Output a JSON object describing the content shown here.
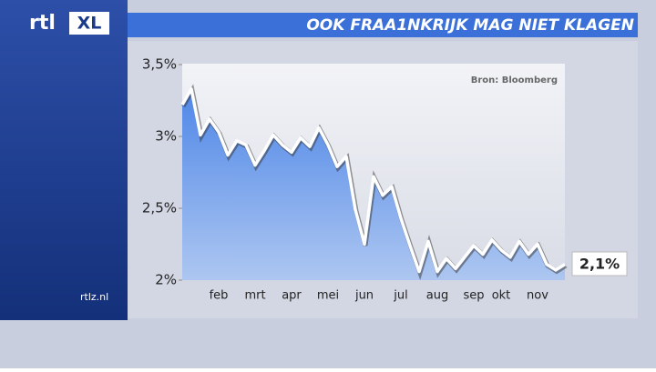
{
  "logo": {
    "rtl": "rtl",
    "xl": "XL"
  },
  "site": "rtlz.nl",
  "chart_data": {
    "type": "line",
    "title": "OOK FRAA1NKRIJK MAG NIET KLAGEN",
    "source": "Bron: Bloomberg",
    "annotation": "2,1%",
    "categories": [
      null,
      null,
      null,
      null,
      "feb",
      null,
      null,
      null,
      "mrt",
      null,
      null,
      null,
      "apr",
      null,
      null,
      null,
      "mei",
      null,
      null,
      null,
      "jun",
      null,
      null,
      null,
      "jul",
      null,
      null,
      null,
      "aug",
      null,
      null,
      null,
      "sep",
      null,
      null,
      "okt",
      null,
      null,
      null,
      "nov",
      null,
      null,
      null
    ],
    "series": [
      {
        "color": "#ffffff",
        "values": [
          3.22,
          3.33,
          3.01,
          3.12,
          3.03,
          2.87,
          2.97,
          2.94,
          2.8,
          2.9,
          3.01,
          2.94,
          2.89,
          2.99,
          2.93,
          3.06,
          2.94,
          2.79,
          2.86,
          2.49,
          2.25,
          2.72,
          2.59,
          2.65,
          2.43,
          2.24,
          2.06,
          2.27,
          2.06,
          2.15,
          2.08,
          2.16,
          2.24,
          2.18,
          2.28,
          2.21,
          2.16,
          2.27,
          2.18,
          2.25,
          2.11,
          2.07,
          2.11
        ]
      }
    ],
    "area_color": "#3d7be6",
    "ylim": [
      2,
      3.5
    ],
    "yticks": [
      {
        "value": 2,
        "label": "2%"
      },
      {
        "value": 2.5,
        "label": "2,5%"
      },
      {
        "value": 3,
        "label": "3%"
      },
      {
        "value": 3.5,
        "label": "3,5%"
      }
    ]
  }
}
